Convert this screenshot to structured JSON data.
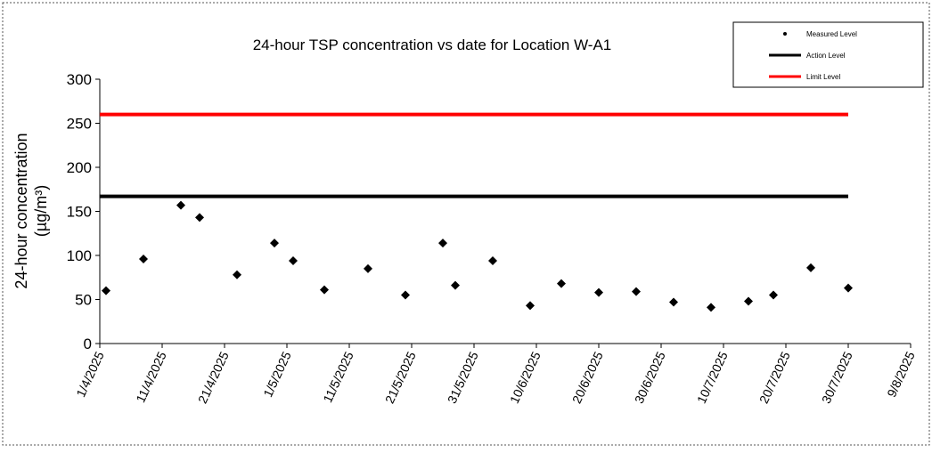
{
  "chart_data": {
    "type": "scatter",
    "title": "24-hour TSP concentration vs date for Location W-A1",
    "y_label": [
      "24-hour concentration",
      "(µg/m³)"
    ],
    "xlim": [
      "1/4/2025",
      "9/8/2025"
    ],
    "xticks": [
      "1/4/2025",
      "11/4/2025",
      "21/4/2025",
      "1/5/2025",
      "11/5/2025",
      "21/5/2025",
      "31/5/2025",
      "10/6/2025",
      "20/6/2025",
      "30/6/2025",
      "10/7/2025",
      "20/7/2025",
      "30/7/2025",
      "9/8/2025"
    ],
    "ylim": [
      0,
      300
    ],
    "yticks": [
      0,
      50,
      100,
      150,
      200,
      250,
      300
    ],
    "legend": "top-right",
    "series": [
      {
        "name": "Measured Level",
        "color": "#000000",
        "style": "markers",
        "x": [
          "2/4/2025",
          "8/4/2025",
          "14/4/2025",
          "17/4/2025",
          "23/4/2025",
          "29/4/2025",
          "2/5/2025",
          "7/5/2025",
          "14/5/2025",
          "20/5/2025",
          "26/5/2025",
          "28/5/2025",
          "3/6/2025",
          "9/6/2025",
          "14/6/2025",
          "20/6/2025",
          "26/6/2025",
          "2/7/2025",
          "8/7/2025",
          "14/7/2025",
          "18/7/2025",
          "24/7/2025",
          "30/7/2025"
        ],
        "values": [
          60,
          96,
          157,
          143,
          78,
          114,
          94,
          61,
          85,
          55,
          114,
          66,
          94,
          43,
          68,
          58,
          59,
          47,
          41,
          48,
          55,
          86,
          63
        ]
      },
      {
        "name": "Action Level",
        "color": "#000000",
        "style": "line",
        "x": [
          "1/4/2025",
          "30/7/2025"
        ],
        "values": [
          167,
          167
        ]
      },
      {
        "name": "Limit Level",
        "color": "#ff0000",
        "style": "line",
        "x": [
          "1/4/2025",
          "30/7/2025"
        ],
        "values": [
          260,
          260
        ]
      }
    ]
  }
}
